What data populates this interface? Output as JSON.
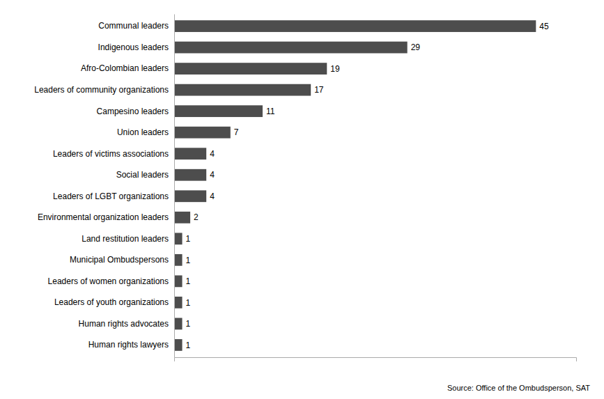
{
  "chart_data": {
    "type": "bar",
    "orientation": "horizontal",
    "categories": [
      "Human rights lawyers",
      "Human rights advocates",
      "Leaders of youth organizations",
      "Leaders of women organizations",
      "Municipal Ombudspersons",
      "Land restitution leaders",
      "Environmental organization leaders",
      "Leaders of LGBT organizations",
      "Social leaders",
      "Leaders of victims associations",
      "Union leaders",
      "Campesino leaders",
      "Leaders of community organizations",
      "Afro-Colombian leaders",
      "Indigenous leaders",
      "Communal leaders"
    ],
    "values": [
      1,
      1,
      1,
      1,
      1,
      1,
      2,
      4,
      4,
      4,
      7,
      11,
      17,
      19,
      29,
      45
    ],
    "color": "#4d4d4d",
    "xlim": [
      0,
      50
    ],
    "xticks": [],
    "data_labels": true,
    "tick_labels": "y",
    "annotations": [
      "Source: Office of the Ombudsperson, SAT"
    ]
  }
}
